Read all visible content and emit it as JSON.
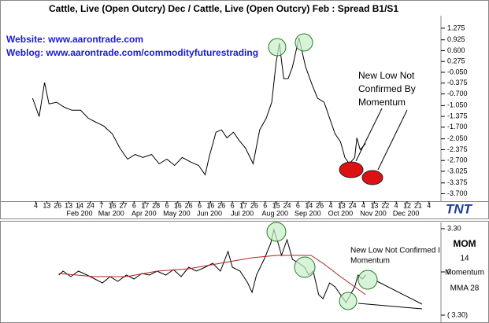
{
  "chart_data": [
    {
      "type": "line",
      "title": "Cattle, Live (Open Outcry) Dec  / Cattle, Live (Open Outcry) Feb  :  Spread B1/S1",
      "links": [
        "Website: www.aarontrade.com",
        "Weblog: www.aarontrade.com/commodityfuturestrading"
      ],
      "annotation": [
        "New Low Not",
        "Confirmed By",
        "Momentum"
      ],
      "logo": "TNT",
      "color": "#000000",
      "x": [
        1,
        7,
        12,
        16,
        23,
        30,
        37,
        45,
        52,
        59,
        66,
        74,
        81,
        88,
        95,
        102,
        110,
        117,
        124,
        131,
        138,
        146,
        153,
        159,
        163,
        169,
        174,
        179,
        185,
        190,
        196,
        203,
        209,
        215,
        220,
        224,
        227,
        231,
        235,
        239,
        245,
        251,
        257,
        262,
        268,
        273,
        278,
        283,
        287,
        291,
        296,
        298,
        301,
        306
      ],
      "values": [
        -0.83,
        -1.38,
        -0.36,
        -1.0,
        -0.95,
        -1.1,
        -1.19,
        -1.19,
        -1.43,
        -1.55,
        -1.66,
        -1.9,
        -2.33,
        -2.66,
        -2.52,
        -2.61,
        -2.52,
        -2.8,
        -2.66,
        -2.85,
        -2.61,
        -2.75,
        -2.85,
        -3.13,
        -2.56,
        -1.85,
        -1.78,
        -2.02,
        -1.85,
        -2.09,
        -2.33,
        -2.8,
        -1.78,
        -1.43,
        -0.95,
        0.23,
        0.82,
        -0.24,
        -0.24,
        0.11,
        0.99,
        0.11,
        -0.43,
        -0.83,
        -0.95,
        -1.43,
        -1.9,
        -2.14,
        -2.61,
        -2.8,
        -2.61,
        -2.02,
        -2.38,
        -2.19
      ],
      "xlim": [
        0,
        375
      ],
      "ylim": [
        -3.9,
        1.65
      ],
      "yticks": [
        1.275,
        0.925,
        {
          "value": 0.6,
          "label": "0.600"
        },
        0.275,
        {
          "value": -0.05,
          "label": "-0.050"
        },
        -0.375,
        {
          "value": -0.7,
          "label": "-0.700"
        },
        {
          "value": -1.05,
          "label": "-1.050"
        },
        -1.375,
        {
          "value": -1.7,
          "label": "-1.700"
        },
        {
          "value": -2.05,
          "label": "-2.050"
        },
        -2.375,
        {
          "value": -2.7,
          "label": "-2.700"
        },
        -3.025,
        -3.375,
        {
          "value": -3.7,
          "label": "-3.700"
        }
      ],
      "xticks": [
        {
          "value": 4,
          "label": "4"
        },
        {
          "value": 14,
          "label": "13"
        },
        {
          "value": 24,
          "label": "26"
        },
        {
          "value": 34,
          "label": "13"
        },
        {
          "value": 44,
          "label": "14"
        },
        {
          "value": 54,
          "label": "24"
        },
        {
          "value": 64,
          "label": "7"
        },
        {
          "value": 74,
          "label": "16"
        },
        {
          "value": 84,
          "label": "27"
        },
        {
          "value": 94,
          "label": "6"
        },
        {
          "value": 104,
          "label": "17"
        },
        {
          "value": 114,
          "label": "28"
        },
        {
          "value": 124,
          "label": "6"
        },
        {
          "value": 134,
          "label": "16"
        },
        {
          "value": 144,
          "label": "26"
        },
        {
          "value": 154,
          "label": "6"
        },
        {
          "value": 164,
          "label": "16"
        },
        {
          "value": 174,
          "label": "26"
        },
        {
          "value": 184,
          "label": "6"
        },
        {
          "value": 194,
          "label": "17"
        },
        {
          "value": 204,
          "label": "26"
        },
        {
          "value": 214,
          "label": "6"
        },
        {
          "value": 224,
          "label": "15"
        },
        {
          "value": 234,
          "label": "24"
        },
        {
          "value": 244,
          "label": "6"
        },
        {
          "value": 254,
          "label": "14"
        },
        {
          "value": 264,
          "label": "26"
        },
        {
          "value": 274,
          "label": "4"
        },
        {
          "value": 284,
          "label": "13"
        },
        {
          "value": 294,
          "label": "24"
        },
        {
          "value": 304,
          "label": "4"
        },
        {
          "value": 314,
          "label": "13"
        },
        {
          "value": 324,
          "label": "22"
        },
        {
          "value": 334,
          "label": "4"
        },
        {
          "value": 344,
          "label": "12"
        },
        {
          "value": 354,
          "label": "21"
        },
        {
          "value": 364,
          "label": "4"
        }
      ],
      "xmonths": [
        {
          "value": 44,
          "label": "Feb 200"
        },
        {
          "value": 73,
          "label": "Mar 200"
        },
        {
          "value": 103,
          "label": "Apr 200"
        },
        {
          "value": 133,
          "label": "May 200"
        },
        {
          "value": 163,
          "label": "Jun 200"
        },
        {
          "value": 193,
          "label": "Jul 200"
        },
        {
          "value": 223,
          "label": "Aug 200"
        },
        {
          "value": 253,
          "label": "Sep 200"
        },
        {
          "value": 283,
          "label": "Oct 200"
        },
        {
          "value": 313,
          "label": "Nov 200"
        },
        {
          "value": 343,
          "label": "Dec 200"
        }
      ]
    },
    {
      "type": "line",
      "indicator": "MOM",
      "period": 14,
      "annotation": [
        "New Low Not Confirmed I",
        "Momentum"
      ],
      "x": [
        25,
        29,
        36,
        43,
        51,
        58,
        65,
        72,
        79,
        87,
        94,
        101,
        108,
        115,
        123,
        130,
        137,
        144,
        151,
        159,
        166,
        173,
        180,
        184,
        191,
        198,
        202,
        206,
        213,
        219,
        222,
        226,
        229,
        234,
        239,
        245,
        250,
        254,
        258,
        263,
        267,
        273,
        278,
        283,
        288,
        292,
        296,
        299,
        303,
        306
      ],
      "series": [
        {
          "name": "Momentum",
          "color": "#000000",
          "values": [
            -0.24,
            0.06,
            -0.36,
            0.06,
            -0.24,
            -0.54,
            -0.84,
            -0.36,
            -0.72,
            -0.24,
            -0.54,
            -0.12,
            -0.24,
            0.06,
            -0.24,
            0.18,
            -0.36,
            0.36,
            0.06,
            0.36,
            0.66,
            0.06,
            1.56,
            0.36,
            0.06,
            -0.84,
            -1.56,
            -0.24,
            0.96,
            2.16,
            3.23,
            2.16,
            1.26,
            2.46,
            0.96,
            0.66,
            0.36,
            -0.24,
            0.06,
            -1.74,
            -2.04,
            -0.84,
            -1.14,
            -1.74,
            -2.34,
            -1.74,
            -1.14,
            -0.24,
            -0.54,
            -0.24
          ]
        },
        {
          "name": "MMA 28",
          "color": "#b22222",
          "x": [
            25,
            58,
            87,
            115,
            144,
            173,
            202,
            224,
            245,
            256,
            267,
            281,
            296,
            306
          ],
          "values": [
            -0.12,
            -0.36,
            -0.36,
            0.06,
            0.24,
            0.66,
            1.08,
            1.26,
            1.26,
            1.26,
            0.66,
            -0.24,
            -1.14,
            -1.74
          ]
        }
      ],
      "xlim": [
        0,
        375
      ],
      "ylim": [
        -3.3,
        3.3
      ],
      "yticks": [
        {
          "value": 3.3,
          "label": "3.30"
        },
        0,
        {
          "value": -3.3,
          "label": "( 3.30)"
        }
      ]
    }
  ]
}
